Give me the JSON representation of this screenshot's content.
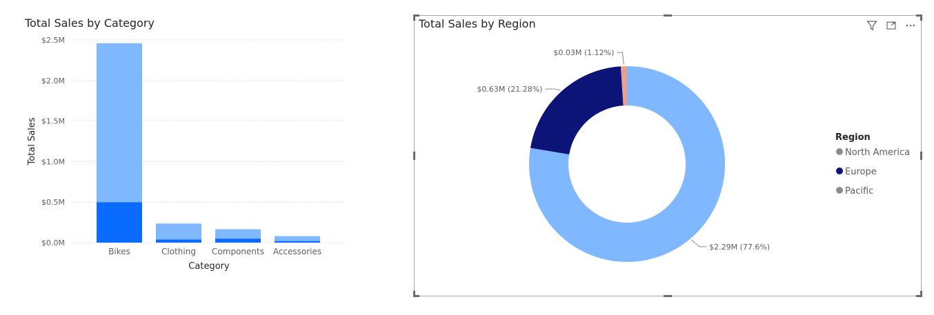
{
  "bar_chart": {
    "title": "Total Sales by Category",
    "colors": {
      "light": "#7fb8ff",
      "dark": "#0a6cff"
    }
  },
  "donut_chart": {
    "title": "Total Sales by Region",
    "legend_title": "Region",
    "header_icons": [
      "filter-icon",
      "focus-mode-icon",
      "more-options-icon"
    ]
  },
  "chart_data": [
    {
      "type": "bar",
      "title": "Total Sales by Category",
      "xlabel": "Category",
      "ylabel": "Total Sales",
      "categories": [
        "Bikes",
        "Clothing",
        "Components",
        "Accessories"
      ],
      "series": [
        {
          "values": [
            0.5,
            0.04,
            0.05,
            0.02
          ],
          "color": "#0a6cff"
        },
        {
          "values": [
            1.96,
            0.195,
            0.115,
            0.06
          ],
          "color": "#7fb8ff"
        }
      ],
      "stacked": true,
      "ylim": [
        0,
        2.5
      ],
      "yticks": [
        0,
        0.5,
        1.0,
        1.5,
        2.0,
        2.5
      ],
      "ytick_labels": [
        "$0.0M",
        "$0.5M",
        "$1.0M",
        "$1.5M",
        "$2.0M",
        "$2.5M"
      ],
      "grid": true
    },
    {
      "type": "pie",
      "donut": true,
      "title": "Total Sales by Region",
      "legend_title": "Region",
      "legend_position": "right",
      "labels": [
        "North America",
        "Europe",
        "Pacific"
      ],
      "values": [
        2.29,
        0.63,
        0.03
      ],
      "percentages": [
        77.6,
        21.28,
        1.12
      ],
      "data_labels": [
        "$2.29M (77.6%)",
        "$0.63M (21.28%)",
        "$0.03M (1.12%)"
      ],
      "colors": [
        "#80b8ff",
        "#0c1478",
        "#e8a08c"
      ],
      "legend_marker_colors": [
        "#8c8c8c",
        "#0c1478",
        "#8c8c8c"
      ]
    }
  ]
}
